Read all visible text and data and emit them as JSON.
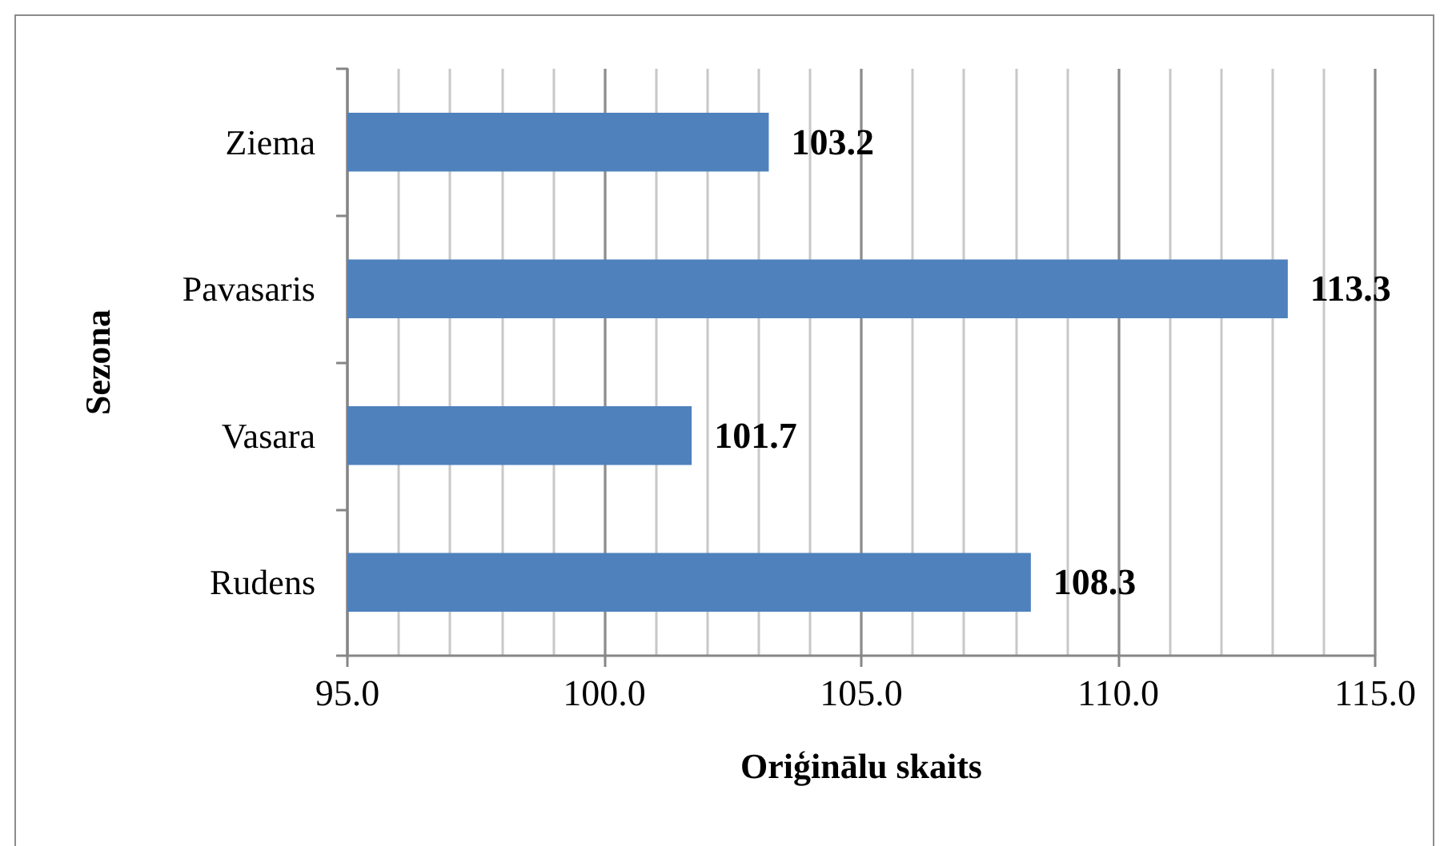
{
  "chart_data": {
    "type": "bar",
    "orientation": "horizontal",
    "categories": [
      "Ziema",
      "Pavasaris",
      "Vasara",
      "Rudens"
    ],
    "values": [
      103.2,
      113.3,
      101.7,
      108.3
    ],
    "color": "#4f81bd",
    "xlabel": "Oriģinālu skaits",
    "ylabel": "Sezona",
    "xlim": [
      95,
      115
    ],
    "xticks": [
      {
        "value": 95,
        "label": "95.0"
      },
      {
        "value": 96,
        "label": null
      },
      {
        "value": 97,
        "label": null
      },
      {
        "value": 98,
        "label": null
      },
      {
        "value": 99,
        "label": null
      },
      {
        "value": 100,
        "label": "100.0"
      },
      {
        "value": 101,
        "label": null
      },
      {
        "value": 102,
        "label": null
      },
      {
        "value": 103,
        "label": null
      },
      {
        "value": 104,
        "label": null
      },
      {
        "value": 105,
        "label": "105.0"
      },
      {
        "value": 106,
        "label": null
      },
      {
        "value": 107,
        "label": null
      },
      {
        "value": 108,
        "label": null
      },
      {
        "value": 109,
        "label": null
      },
      {
        "value": 110,
        "label": "110.0"
      },
      {
        "value": 111,
        "label": null
      },
      {
        "value": 112,
        "label": null
      },
      {
        "value": 113,
        "label": null
      },
      {
        "value": 114,
        "label": null
      },
      {
        "value": 115,
        "label": "115.0"
      }
    ],
    "grid": "x",
    "data_labels": true
  }
}
